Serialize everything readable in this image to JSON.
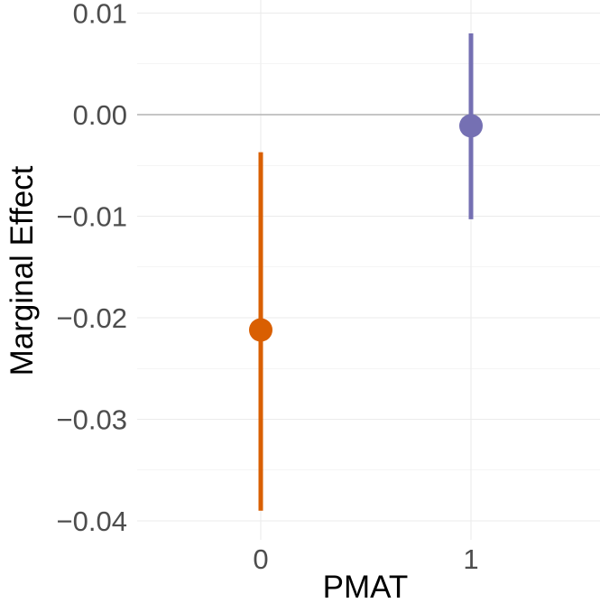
{
  "chart_data": {
    "type": "scatter",
    "subtype": "point-range",
    "title": "",
    "xlabel": "PMAT",
    "ylabel": "Marginal Effect",
    "categories": [
      "0",
      "1"
    ],
    "ylim": [
      -0.041,
      0.0105
    ],
    "y_ticks": [
      0.01,
      0.0,
      -0.01,
      -0.02,
      -0.03,
      -0.04
    ],
    "y_tick_labels": [
      "0.01",
      "0.00",
      "−0.01",
      "−0.02",
      "−0.03",
      "−0.04"
    ],
    "reference_line": 0.0,
    "grid": true,
    "legend": "none",
    "points": [
      {
        "category": "0",
        "estimate": -0.0212,
        "lower": -0.039,
        "upper": -0.0037,
        "color": "#d95f02"
      },
      {
        "category": "1",
        "estimate": -0.0011,
        "lower": -0.0103,
        "upper": 0.008,
        "color": "#7570b3"
      }
    ]
  },
  "colors": {
    "grid": "#ebebeb",
    "zero_line": "#b3b3b3",
    "tick_text": "#4d4d4d"
  }
}
